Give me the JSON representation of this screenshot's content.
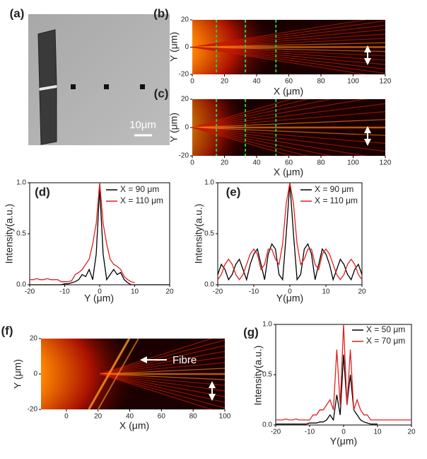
{
  "chart_data": [
    {
      "type": "image",
      "panel_label": "(a)",
      "scale_bar_label": "10μm"
    },
    {
      "type": "image",
      "panel_label": "(b)",
      "xlabel": "X (μm)",
      "ylabel": "Y (μm)",
      "xlim": [
        0,
        120
      ],
      "ylim": [
        -20,
        20
      ],
      "xticks": [
        0,
        20,
        40,
        60,
        80,
        100,
        120
      ],
      "yticks": [
        -20,
        0,
        20
      ],
      "markers_x": [
        15,
        33,
        52
      ],
      "marker_color": "#22cc44"
    },
    {
      "type": "image",
      "panel_label": "(c)",
      "xlabel": "X (μm)",
      "ylabel": "Y (μm)",
      "xlim": [
        0,
        120
      ],
      "ylim": [
        -20,
        20
      ],
      "xticks": [
        0,
        20,
        40,
        60,
        80,
        100,
        120
      ],
      "yticks": [
        -20,
        0,
        20
      ],
      "markers_x": [
        15,
        33,
        52
      ],
      "marker_color": "#22cc44"
    },
    {
      "type": "line",
      "panel_label": "(d)",
      "xlabel": "Y (μm)",
      "ylabel": "Intensity(a.u.)",
      "xlim": [
        -20,
        20
      ],
      "ylim": [
        0,
        1
      ],
      "xticks": [
        -20,
        -10,
        0,
        10,
        20
      ],
      "yticks": [
        {
          "value": 0,
          "label": "0.0"
        },
        0.5,
        {
          "value": 1,
          "label": "1.0"
        }
      ],
      "x": [
        -20,
        -19,
        -18,
        -17,
        -16,
        -15,
        -14,
        -13,
        -12,
        -11,
        -10,
        -9,
        -8,
        -7,
        -6,
        -5,
        -4,
        -3,
        -2,
        -1,
        0,
        1,
        2,
        3,
        4,
        5,
        6,
        7,
        8,
        9,
        10,
        11,
        12,
        13,
        14,
        15,
        16,
        17,
        18,
        19,
        20
      ],
      "series": [
        {
          "name": "X = 90 μm",
          "color": "#000000",
          "values": [
            0,
            0,
            0,
            0,
            0,
            0,
            0,
            0,
            0,
            0,
            0.01,
            0.01,
            0.02,
            0.03,
            0.05,
            0.1,
            0.08,
            0.15,
            0.05,
            0.3,
            0.95,
            0.3,
            0.05,
            0.1,
            0.15,
            0.1,
            0.12,
            0.05,
            0.02,
            0,
            0,
            0,
            0,
            0,
            0,
            0,
            0,
            0,
            0,
            0,
            0
          ]
        },
        {
          "name": "X = 110 μm",
          "color": "#e02020",
          "values": [
            0.05,
            0.05,
            0.06,
            0.05,
            0.05,
            0.06,
            0.05,
            0.05,
            0.05,
            0.03,
            0.03,
            0.03,
            0.04,
            0.1,
            0.12,
            0.15,
            0.2,
            0.25,
            0.4,
            0.6,
            1.0,
            0.6,
            0.4,
            0.25,
            0.2,
            0.18,
            0.15,
            0.08,
            0.05,
            0.03,
            0.02,
            null,
            null,
            null,
            null,
            null,
            null,
            null,
            null,
            null,
            null
          ]
        }
      ]
    },
    {
      "type": "line",
      "panel_label": "(e)",
      "xlabel": "Y(μm)",
      "ylabel": "Intensity(a.u.)",
      "xlim": [
        -20,
        20
      ],
      "ylim": [
        0,
        1
      ],
      "xticks": [
        -20,
        -10,
        0,
        10,
        20
      ],
      "yticks": [
        {
          "value": 0,
          "label": "0.0"
        },
        0.5,
        {
          "value": 1,
          "label": "1.0"
        }
      ],
      "x": [
        -20,
        -19,
        -18,
        -17,
        -16,
        -15,
        -14,
        -13,
        -12,
        -11,
        -10,
        -9,
        -8,
        -7,
        -6,
        -5,
        -4,
        -3,
        -2,
        -1,
        0,
        1,
        2,
        3,
        4,
        5,
        6,
        7,
        8,
        9,
        10,
        11,
        12,
        13,
        14,
        15,
        16,
        17,
        18,
        19,
        20
      ],
      "series": [
        {
          "name": "X = 90 μm",
          "color": "#000000",
          "values": [
            0.1,
            0.2,
            0.15,
            0.05,
            0.1,
            0.2,
            0.25,
            0.15,
            0.05,
            0.2,
            0.3,
            0.35,
            0.2,
            0.05,
            0.3,
            0.4,
            0.35,
            0.1,
            0.05,
            0.5,
            1.0,
            0.5,
            0.05,
            0.1,
            0.35,
            0.4,
            0.3,
            0.05,
            0.2,
            0.35,
            0.3,
            0.2,
            0.05,
            0.15,
            0.25,
            0.2,
            0.1,
            0.05,
            0.15,
            0.2,
            0.1
          ]
        },
        {
          "name": "X = 110 μm",
          "color": "#e02020",
          "values": [
            0.05,
            0.1,
            0.2,
            0.25,
            0.2,
            0.1,
            0.05,
            0.1,
            0.2,
            0.3,
            0.35,
            0.3,
            0.15,
            0.2,
            0.35,
            0.35,
            0.25,
            0.2,
            0.4,
            0.8,
            1.0,
            0.8,
            0.4,
            0.2,
            0.25,
            0.35,
            0.35,
            0.2,
            0.15,
            0.3,
            0.35,
            0.3,
            0.2,
            0.1,
            0.05,
            0.1,
            0.2,
            0.25,
            0.2,
            0.1,
            0.05
          ]
        }
      ]
    },
    {
      "type": "image",
      "panel_label": "(f)",
      "xlabel": "X (μm)",
      "ylabel": "Y (μm)",
      "xlim": [
        -16,
        100
      ],
      "ylim": [
        -20,
        20
      ],
      "xticks": [
        0,
        20,
        40,
        60,
        80,
        100
      ],
      "yticks": [
        -20,
        0,
        20
      ],
      "annotation": "Fibre"
    },
    {
      "type": "line",
      "panel_label": "(g)",
      "xlabel": "Y(μm)",
      "ylabel": "Intensity(a.u.)",
      "xlim": [
        -20,
        20
      ],
      "ylim": [
        0,
        1
      ],
      "xticks": [
        -20,
        -10,
        0,
        10,
        20
      ],
      "yticks": [
        {
          "value": 0,
          "label": "0.0"
        },
        0.5,
        {
          "value": 1,
          "label": "1.0"
        }
      ],
      "x": [
        -20,
        -19,
        -18,
        -17,
        -16,
        -15,
        -14,
        -13,
        -12,
        -11,
        -10,
        -9,
        -8,
        -7,
        -6,
        -5,
        -4,
        -3,
        -2,
        -1,
        0,
        1,
        2,
        3,
        4,
        5,
        6,
        7,
        8,
        9,
        10,
        11,
        12,
        13,
        14,
        15,
        16,
        17,
        18,
        19,
        20
      ],
      "series": [
        {
          "name": "X = 50 μm",
          "color": "#000000",
          "values": [
            0.01,
            0.01,
            0.01,
            0.01,
            0.01,
            0.01,
            0.01,
            0.01,
            0.01,
            0.01,
            0.02,
            0.02,
            0.02,
            0.03,
            0.03,
            0.05,
            0.1,
            0.05,
            0.3,
            0.1,
            0.7,
            0.2,
            0.5,
            0.15,
            0.1,
            0.05,
            0.03,
            0.02,
            0.01,
            0.01,
            0.01,
            null,
            null,
            null,
            null,
            null,
            null,
            null,
            null,
            null,
            null
          ]
        },
        {
          "name": "X = 70 μm",
          "color": "#e02020",
          "values": [
            0.05,
            0.05,
            0.05,
            0.06,
            0.05,
            0.05,
            0.06,
            0.05,
            0.05,
            0.05,
            0.05,
            0.1,
            0.1,
            0.15,
            0.15,
            0.2,
            0.25,
            0.15,
            0.75,
            0.2,
            1.0,
            0.2,
            0.75,
            0.15,
            0.25,
            0.15,
            0.1,
            0.1,
            0.05,
            0.05,
            0.05,
            0.05,
            0.05,
            0.05,
            0.05,
            0.05,
            0.05,
            0.05,
            0.05,
            0.05,
            0.05
          ]
        }
      ]
    }
  ]
}
